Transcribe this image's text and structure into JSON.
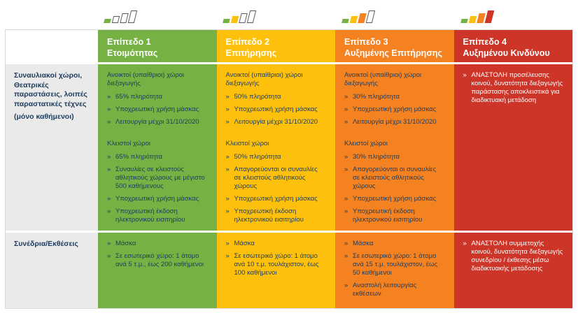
{
  "bullet": "»",
  "colors": {
    "green": "#75b143",
    "yellow": "#fdc10d",
    "orange": "#f58220",
    "red": "#cd3528",
    "label_bg": "#eaeaea",
    "text_dark": "#1d3c5e",
    "text_light": "#ffffff"
  },
  "bar_palette": [
    "#75b143",
    "#fdc10d",
    "#f58220",
    "#cd3528"
  ],
  "levels": [
    {
      "name": "Επίπεδο 1",
      "subtitle": "Ετοιμότητας",
      "color_key": "green",
      "filled_bars": 1
    },
    {
      "name": "Επίπεδο 2",
      "subtitle": "Επιτήρησης",
      "color_key": "yellow",
      "filled_bars": 2
    },
    {
      "name": "Επίπεδο 3",
      "subtitle": "Αυξημένης Επιτήρησης",
      "color_key": "orange",
      "filled_bars": 3
    },
    {
      "name": "Επίπεδο 4",
      "subtitle": "Αυξημένου Κινδύνου",
      "color_key": "red",
      "filled_bars": 4
    }
  ],
  "rows": [
    {
      "label": "Συναυλιακοί χώροι, Θεατρικές παραστάσεις, λοιπές παραστατικές τέχνες",
      "label_note": "(μόνο καθήμενοι)",
      "cells": [
        {
          "groups": [
            {
              "heading": "Ανοικτοί (υπαίθριοι) χώροι διεξαγωγής",
              "items": [
                "65% πληρότητα",
                "Υποχρεωτική χρήση μάσκας",
                "Λειτουργία μέχρι 31/10/2020"
              ]
            },
            {
              "heading": "Κλειστοί χώροι",
              "items": [
                "65% πληρότητα",
                "Συναυλίες σε κλειστούς αθλητικούς χώρους με μέγιστο 500 καθήμενους",
                "Υποχρεωτική χρήση μάσκας",
                "Υποχρεωτική έκδοση ηλεκτρονικού εισιτηρίου"
              ]
            }
          ]
        },
        {
          "groups": [
            {
              "heading": "Ανοικτοί (υπαίθριοι) χώροι διεξαγωγής",
              "items": [
                "50% πληρότητα",
                "Υποχρεωτική χρήση μάσκας",
                "Λειτουργία μέχρι 31/10/2020"
              ]
            },
            {
              "heading": "Κλειστοί χώροι",
              "items": [
                "50% πληρότητα",
                "Απαγορεύονται οι συναυλίες σε κλειστούς αθλητικούς χώρους",
                "Υποχρεωτική χρήση μάσκας",
                "Υποχρεωτική έκδοση ηλεκτρονικού εισιτηρίου"
              ]
            }
          ]
        },
        {
          "groups": [
            {
              "heading": "Ανοικτοί (υπαίθριοι) χώροι διεξαγωγής",
              "items": [
                "30% πληρότητα",
                "Υποχρεωτική χρήση μάσκας",
                "Λειτουργία μέχρι 31/10/2020"
              ]
            },
            {
              "heading": "Κλειστοί χώροι",
              "items": [
                "30% πληρότητα",
                "Απαγορεύονται οι συναυλίες σε κλειστούς αθλητικούς χώρους",
                "Υποχρεωτική χρήση μάσκας",
                "Υποχρεωτική έκδοση ηλεκτρονικού εισιτηρίου"
              ]
            }
          ]
        },
        {
          "groups": [
            {
              "heading": "",
              "items": [
                "ΑΝΑΣΤΟΛΗ προσέλευσης κοινού, δυνατότητα διεξαγωγής παράστασης αποκλειστικά για διαδικτυακή μετάδοση"
              ]
            }
          ]
        }
      ]
    },
    {
      "label": "Συνέδρια/Εκθέσεις",
      "label_note": "",
      "cells": [
        {
          "groups": [
            {
              "heading": "",
              "items": [
                "Μάσκα",
                "Σε εσωτερικό χώρο: 1 άτομο ανά 5 τ.μ., έως 200 καθήμενοι"
              ]
            }
          ]
        },
        {
          "groups": [
            {
              "heading": "",
              "items": [
                "Μάσκα",
                "Σε εσωτερικό χώρο: 1 άτομο ανά 10 τ.μ. τουλάχιστον, έως 100 καθήμενοι"
              ]
            }
          ]
        },
        {
          "groups": [
            {
              "heading": "",
              "items": [
                "Μάσκα",
                "Σε εσωτερικό χώρο: 1 άτομο ανά 15 τ.μ. τουλάχιστον, έως 50 καθήμενοι",
                "Αναστολή λειτουργίας εκθέσεων"
              ]
            }
          ]
        },
        {
          "groups": [
            {
              "heading": "",
              "items": [
                "ΑΝΑΣΤΟΛΗ συμμετοχής κοινού, δυνατότητα διεξαγωγής συνεδρίου / έκθεσης μέσω διαδικτυακής μετάδοσης"
              ]
            }
          ]
        }
      ]
    }
  ]
}
